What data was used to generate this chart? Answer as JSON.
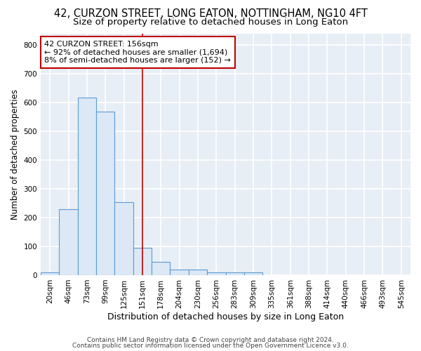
{
  "title": "42, CURZON STREET, LONG EATON, NOTTINGHAM, NG10 4FT",
  "subtitle": "Size of property relative to detached houses in Long Eaton",
  "xlabel": "Distribution of detached houses by size in Long Eaton",
  "ylabel": "Number of detached properties",
  "bar_fill_color": "#dce8f5",
  "bar_edge_color": "#5b9bd5",
  "background_color": "#e8eef5",
  "grid_color": "white",
  "vline_x_index": 5,
  "vline_color": "#c00000",
  "annotation_line1": "42 CURZON STREET: 156sqm",
  "annotation_line2": "← 92% of detached houses are smaller (1,694)",
  "annotation_line3": "8% of semi-detached houses are larger (152) →",
  "annotation_box_color": "#c00000",
  "categories": [
    "20sqm",
    "46sqm",
    "73sqm",
    "99sqm",
    "125sqm",
    "151sqm",
    "178sqm",
    "204sqm",
    "230sqm",
    "256sqm",
    "283sqm",
    "309sqm",
    "335sqm",
    "361sqm",
    "388sqm",
    "414sqm",
    "440sqm",
    "466sqm",
    "493sqm",
    "545sqm"
  ],
  "values": [
    10,
    228,
    617,
    568,
    253,
    96,
    46,
    20,
    20,
    10,
    10,
    10,
    0,
    0,
    0,
    0,
    0,
    0,
    0,
    0
  ],
  "ylim": [
    0,
    840
  ],
  "yticks": [
    0,
    100,
    200,
    300,
    400,
    500,
    600,
    700,
    800
  ],
  "footer_line1": "Contains HM Land Registry data © Crown copyright and database right 2024.",
  "footer_line2": "Contains public sector information licensed under the Open Government Licence v3.0.",
  "title_fontsize": 10.5,
  "subtitle_fontsize": 9.5,
  "xlabel_fontsize": 9,
  "ylabel_fontsize": 8.5,
  "tick_fontsize": 7.5,
  "annotation_fontsize": 8,
  "footer_fontsize": 6.5
}
